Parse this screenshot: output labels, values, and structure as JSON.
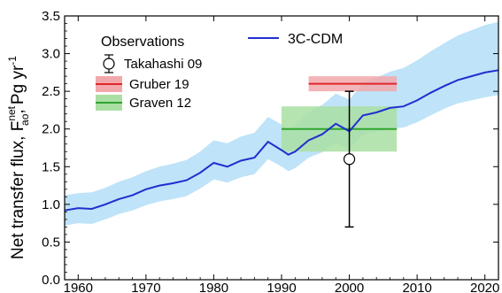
{
  "chart_data": {
    "type": "line",
    "xlim": [
      1958,
      2022
    ],
    "ylim": [
      0.0,
      3.5
    ],
    "x_ticks": [
      "1960",
      "1970",
      "1980",
      "1990",
      "2000",
      "2010",
      "2020"
    ],
    "y_ticks": [
      "0.0",
      "0.5",
      "1.0",
      "1.5",
      "2.0",
      "2.5",
      "3.0",
      "3.5"
    ],
    "ylabel": {
      "main": "Net transfer flux, F",
      "sup": "net",
      "sub": "ao",
      "unit": ", Pg yr",
      "unit_sup": "-1"
    },
    "legend": {
      "observations_title": "Observations",
      "model_label": "3C-CDM"
    },
    "series": [
      {
        "name": "3C-CDM",
        "color": "#1f2fd0",
        "band_color": "#bfe3f8",
        "x": [
          1958,
          1960,
          1962,
          1964,
          1966,
          1968,
          1970,
          1972,
          1974,
          1976,
          1978,
          1980,
          1982,
          1984,
          1986,
          1988,
          1990,
          1991,
          1992,
          1994,
          1996,
          1998,
          2000,
          2002,
          2004,
          2006,
          2008,
          2010,
          2012,
          2014,
          2016,
          2018,
          2020,
          2022
        ],
        "y": [
          0.92,
          0.95,
          0.94,
          1.0,
          1.07,
          1.12,
          1.2,
          1.25,
          1.28,
          1.32,
          1.42,
          1.55,
          1.5,
          1.58,
          1.62,
          1.83,
          1.72,
          1.66,
          1.7,
          1.85,
          1.93,
          2.07,
          1.97,
          2.18,
          2.22,
          2.28,
          2.3,
          2.38,
          2.48,
          2.57,
          2.65,
          2.7,
          2.75,
          2.78
        ],
        "band_lower": [
          0.72,
          0.75,
          0.74,
          0.8,
          0.87,
          0.92,
          0.99,
          1.04,
          1.07,
          1.11,
          1.21,
          1.33,
          1.29,
          1.36,
          1.4,
          1.6,
          1.5,
          1.44,
          1.48,
          1.62,
          1.69,
          1.82,
          1.73,
          1.92,
          1.96,
          2.0,
          2.02,
          2.09,
          2.18,
          2.27,
          2.34,
          2.38,
          2.42,
          2.45
        ],
        "band_upper": [
          1.12,
          1.15,
          1.16,
          1.22,
          1.3,
          1.36,
          1.44,
          1.5,
          1.54,
          1.59,
          1.7,
          1.85,
          1.81,
          1.9,
          1.95,
          2.16,
          2.06,
          2.0,
          2.05,
          2.22,
          2.32,
          2.47,
          2.39,
          2.61,
          2.68,
          2.76,
          2.81,
          2.91,
          3.03,
          3.14,
          3.24,
          3.31,
          3.38,
          3.42
        ]
      }
    ],
    "observations": [
      {
        "name": "Takahashi 09",
        "kind": "point",
        "x": 2000,
        "y": 1.6,
        "err_low": 0.7,
        "err_high": 2.5,
        "color": "#000000"
      },
      {
        "name": "Gruber 19",
        "kind": "box",
        "x_start": 1994,
        "x_end": 2007,
        "y": 2.6,
        "y_low": 2.5,
        "y_high": 2.7,
        "color": "#e0262b",
        "fill": "#f2a8ab"
      },
      {
        "name": "Graven 12",
        "kind": "box",
        "x_start": 1990,
        "x_end": 2007,
        "y": 2.0,
        "y_low": 1.7,
        "y_high": 2.3,
        "color": "#2fa52f",
        "fill": "#a9dfa3"
      }
    ]
  }
}
